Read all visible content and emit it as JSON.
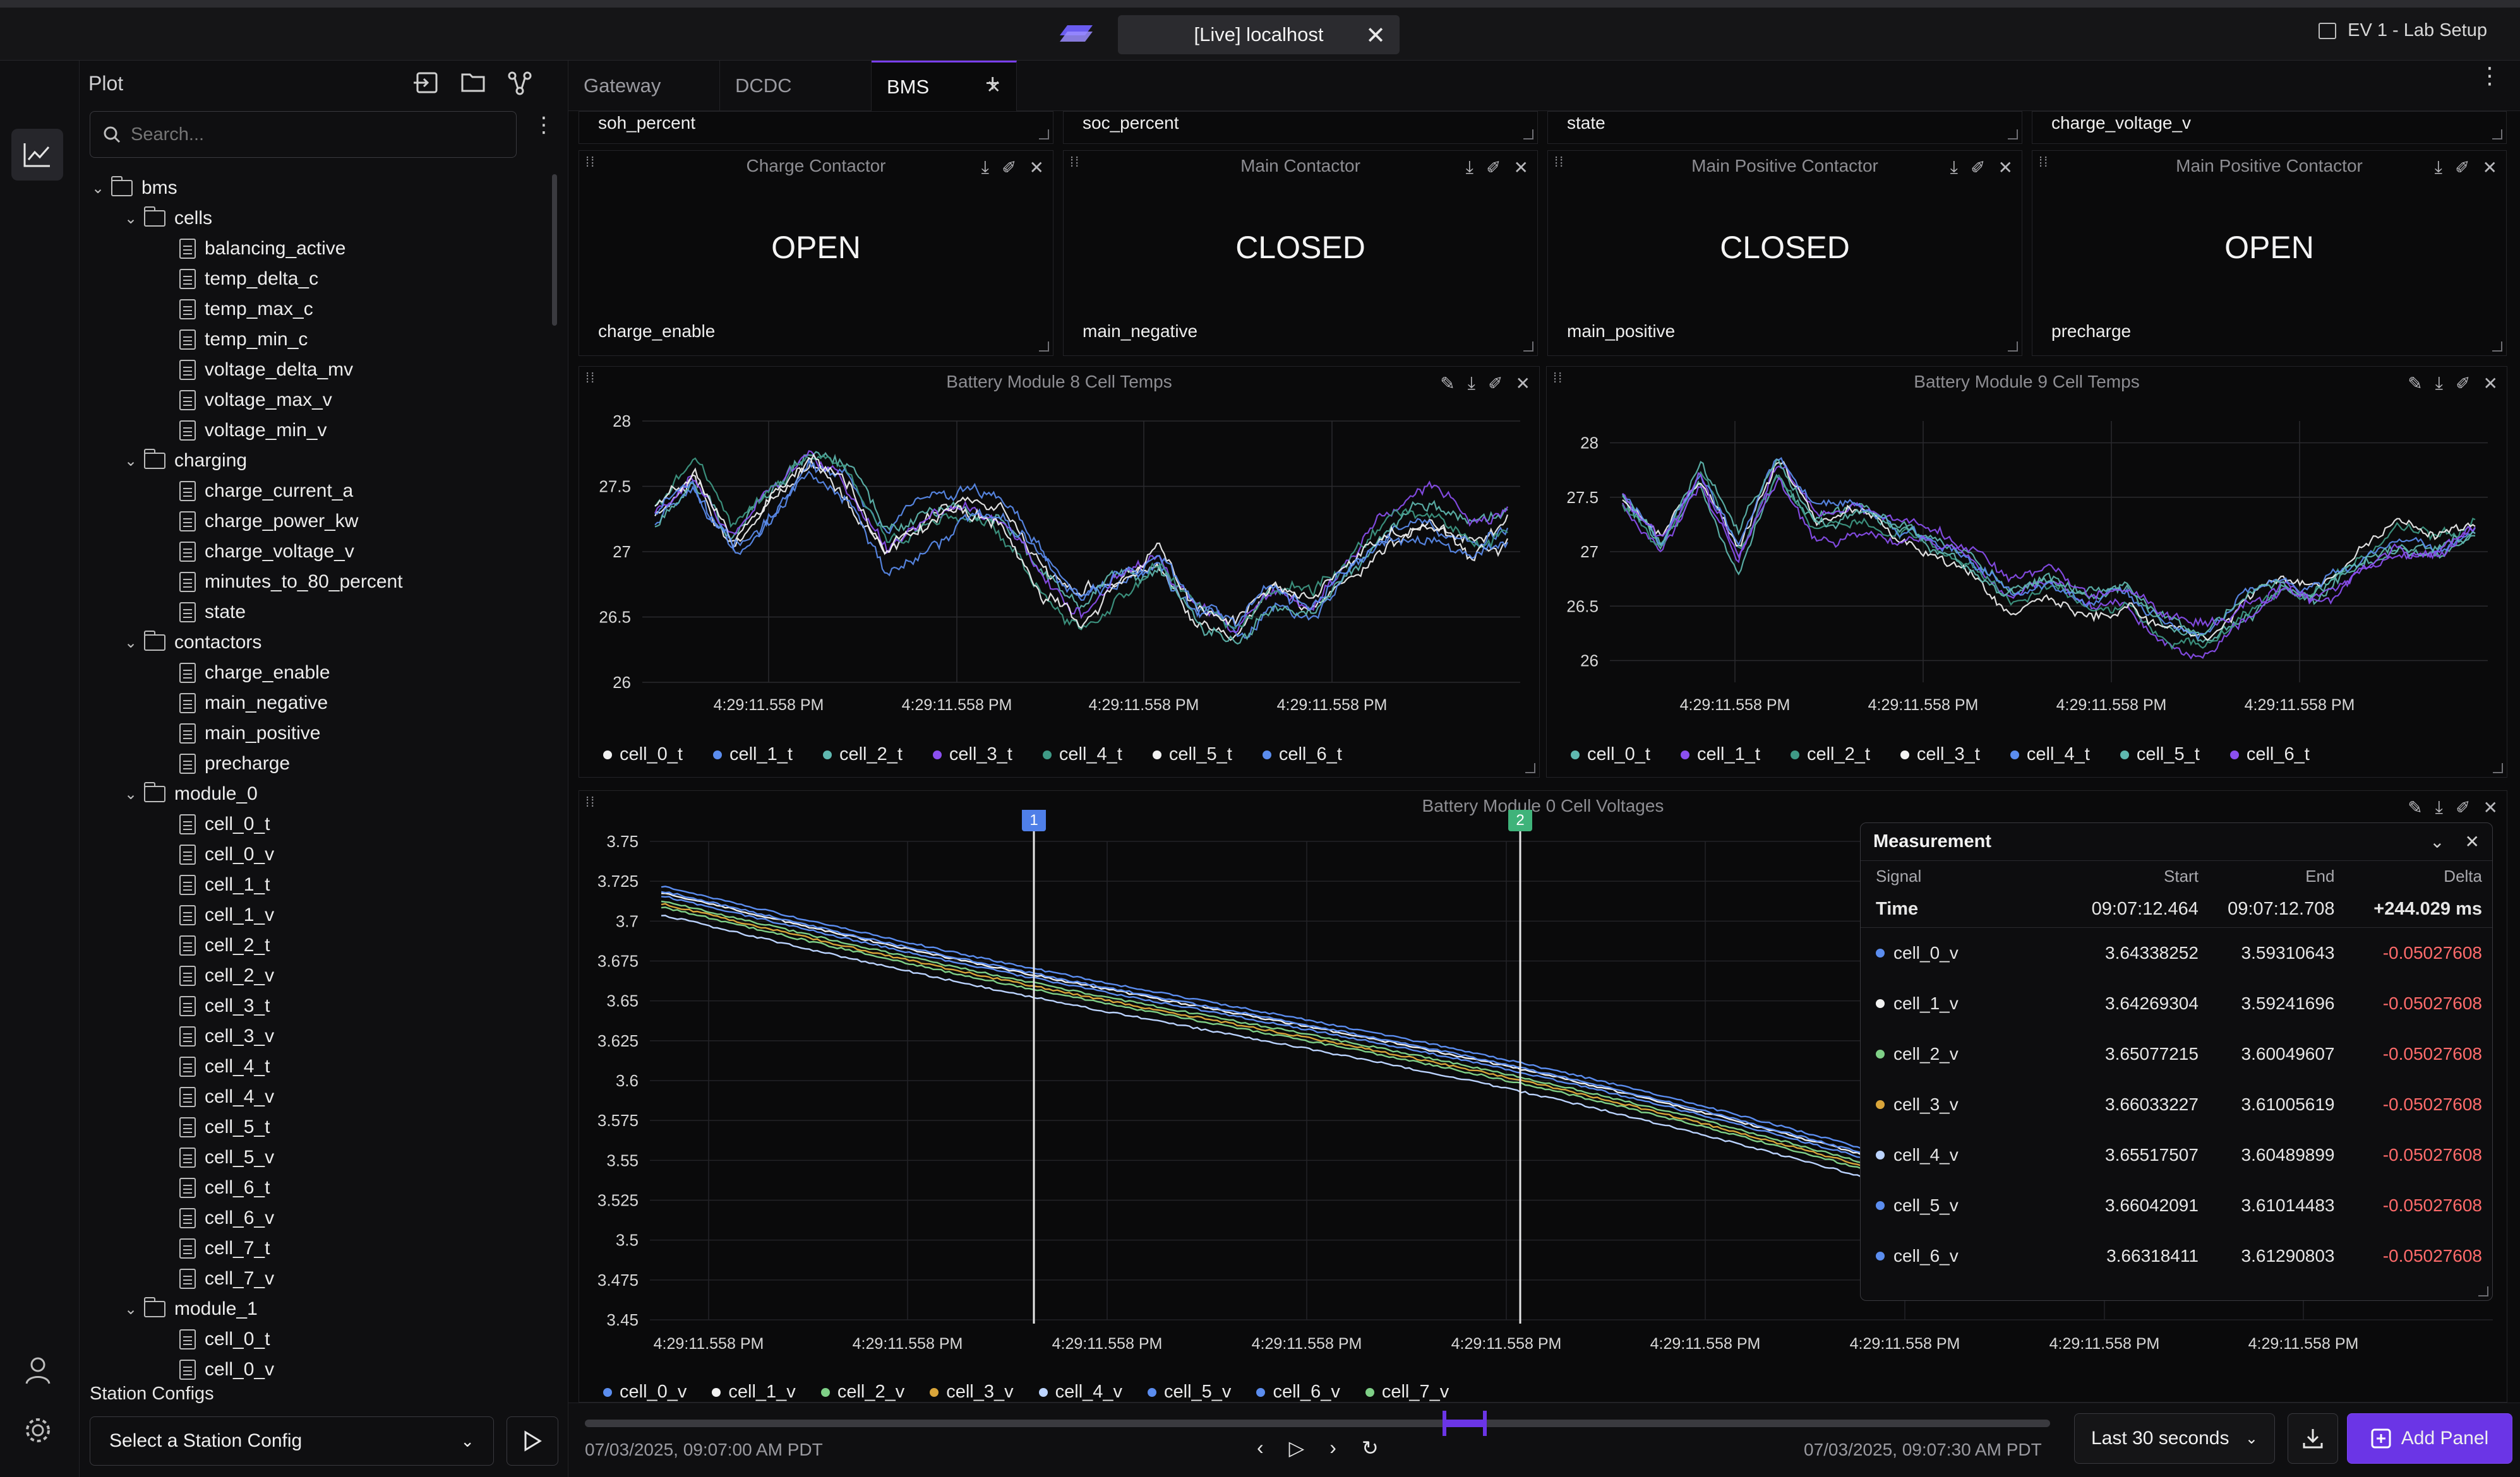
{
  "window": {
    "tab_title": "[Live] localhost",
    "workspace": "EV 1 - Lab Setup"
  },
  "sidebar": {
    "title": "Plot",
    "search_placeholder": "Search...",
    "tree": [
      {
        "label": "bms",
        "type": "dir",
        "level": 0
      },
      {
        "label": "cells",
        "type": "dir",
        "level": 1
      },
      {
        "label": "balancing_active",
        "type": "file",
        "level": 2
      },
      {
        "label": "temp_delta_c",
        "type": "file",
        "level": 2
      },
      {
        "label": "temp_max_c",
        "type": "file",
        "level": 2
      },
      {
        "label": "temp_min_c",
        "type": "file",
        "level": 2
      },
      {
        "label": "voltage_delta_mv",
        "type": "file",
        "level": 2
      },
      {
        "label": "voltage_max_v",
        "type": "file",
        "level": 2
      },
      {
        "label": "voltage_min_v",
        "type": "file",
        "level": 2
      },
      {
        "label": "charging",
        "type": "dir",
        "level": 1
      },
      {
        "label": "charge_current_a",
        "type": "file",
        "level": 2
      },
      {
        "label": "charge_power_kw",
        "type": "file",
        "level": 2
      },
      {
        "label": "charge_voltage_v",
        "type": "file",
        "level": 2
      },
      {
        "label": "minutes_to_80_percent",
        "type": "file",
        "level": 2
      },
      {
        "label": "state",
        "type": "file",
        "level": 2
      },
      {
        "label": "contactors",
        "type": "dir",
        "level": 1
      },
      {
        "label": "charge_enable",
        "type": "file",
        "level": 2
      },
      {
        "label": "main_negative",
        "type": "file",
        "level": 2
      },
      {
        "label": "main_positive",
        "type": "file",
        "level": 2
      },
      {
        "label": "precharge",
        "type": "file",
        "level": 2
      },
      {
        "label": "module_0",
        "type": "dir",
        "level": 1
      },
      {
        "label": "cell_0_t",
        "type": "file",
        "level": 2
      },
      {
        "label": "cell_0_v",
        "type": "file",
        "level": 2
      },
      {
        "label": "cell_1_t",
        "type": "file",
        "level": 2
      },
      {
        "label": "cell_1_v",
        "type": "file",
        "level": 2
      },
      {
        "label": "cell_2_t",
        "type": "file",
        "level": 2
      },
      {
        "label": "cell_2_v",
        "type": "file",
        "level": 2
      },
      {
        "label": "cell_3_t",
        "type": "file",
        "level": 2
      },
      {
        "label": "cell_3_v",
        "type": "file",
        "level": 2
      },
      {
        "label": "cell_4_t",
        "type": "file",
        "level": 2
      },
      {
        "label": "cell_4_v",
        "type": "file",
        "level": 2
      },
      {
        "label": "cell_5_t",
        "type": "file",
        "level": 2
      },
      {
        "label": "cell_5_v",
        "type": "file",
        "level": 2
      },
      {
        "label": "cell_6_t",
        "type": "file",
        "level": 2
      },
      {
        "label": "cell_6_v",
        "type": "file",
        "level": 2
      },
      {
        "label": "cell_7_t",
        "type": "file",
        "level": 2
      },
      {
        "label": "cell_7_v",
        "type": "file",
        "level": 2
      },
      {
        "label": "module_1",
        "type": "dir",
        "level": 1
      },
      {
        "label": "cell_0_t",
        "type": "file",
        "level": 2
      },
      {
        "label": "cell_0_v",
        "type": "file",
        "level": 2
      }
    ],
    "station_configs_label": "Station Configs",
    "station_select": "Select a Station Config"
  },
  "tabs": [
    {
      "label": "Gateway",
      "active": false
    },
    {
      "label": "DCDC",
      "active": false
    },
    {
      "label": "BMS",
      "active": true
    }
  ],
  "top_strip": [
    "soh_percent",
    "soc_percent",
    "state",
    "charge_voltage_v"
  ],
  "contactors": [
    {
      "title": "Charge Contactor",
      "value": "OPEN",
      "signal": "charge_enable"
    },
    {
      "title": "Main Contactor",
      "value": "CLOSED",
      "signal": "main_negative"
    },
    {
      "title": "Main Positive Contactor",
      "value": "CLOSED",
      "signal": "main_positive"
    },
    {
      "title": "Main Positive Contactor",
      "value": "OPEN",
      "signal": "precharge"
    }
  ],
  "colors": {
    "accent": "#7a3ff2",
    "blue": "#5b8def",
    "white": "#f2f2f2",
    "teal": "#5fb8b0",
    "purple": "#8b4ff0",
    "darkteal": "#3f9a86",
    "green": "#7fd087",
    "yellow": "#d9a53a",
    "lightblue": "#bcd4ff",
    "negative": "#ff6b6b",
    "cursor1": "#4f7fe8",
    "cursor2": "#3fb37a"
  },
  "chart_data": [
    {
      "type": "line",
      "title": "Battery Module 8 Cell Temps",
      "ylim": [
        26,
        28
      ],
      "yticks": [
        "28",
        "27.5",
        "27",
        "26.5",
        "26"
      ],
      "xticks": [
        "4:29:11.558 PM",
        "4:29:11.558 PM",
        "4:29:11.558 PM",
        "4:29:11.558 PM"
      ],
      "series": [
        {
          "name": "cell_0_t",
          "color": "#f2f2f2"
        },
        {
          "name": "cell_1_t",
          "color": "#5b8def"
        },
        {
          "name": "cell_2_t",
          "color": "#5fb8b0"
        },
        {
          "name": "cell_3_t",
          "color": "#8b4ff0"
        },
        {
          "name": "cell_4_t",
          "color": "#3f9a86"
        },
        {
          "name": "cell_5_t",
          "color": "#f2f2f2"
        },
        {
          "name": "cell_6_t",
          "color": "#5b8def"
        }
      ],
      "trend": [
        27.4,
        27.7,
        27.2,
        27.5,
        27.8,
        27.6,
        27.1,
        27.3,
        27.5,
        27.4,
        27.0,
        26.7,
        26.9,
        27.0,
        26.6,
        26.5,
        26.8,
        26.7,
        27.0,
        27.3,
        27.4,
        27.2,
        27.3
      ]
    },
    {
      "type": "line",
      "title": "Battery Module 9 Cell Temps",
      "ylim": [
        25.8,
        28.2
      ],
      "yticks": [
        "28",
        "27.5",
        "27",
        "26.5",
        "26"
      ],
      "xticks": [
        "4:29:11.558 PM",
        "4:29:11.558 PM",
        "4:29:11.558 PM",
        "4:29:11.558 PM"
      ],
      "series": [
        {
          "name": "cell_0_t",
          "color": "#5fb8b0"
        },
        {
          "name": "cell_1_t",
          "color": "#8b4ff0"
        },
        {
          "name": "cell_2_t",
          "color": "#3f9a86"
        },
        {
          "name": "cell_3_t",
          "color": "#f2f2f2"
        },
        {
          "name": "cell_4_t",
          "color": "#5b8def"
        },
        {
          "name": "cell_5_t",
          "color": "#5fb8b0"
        },
        {
          "name": "cell_6_t",
          "color": "#8b4ff0"
        }
      ],
      "trend": [
        27.6,
        27.2,
        27.8,
        27.1,
        27.9,
        27.4,
        27.5,
        27.3,
        27.2,
        27.0,
        26.7,
        26.8,
        26.6,
        26.7,
        26.4,
        26.3,
        26.6,
        26.8,
        26.7,
        27.0,
        27.2,
        27.1,
        27.3
      ]
    },
    {
      "type": "line",
      "title": "Battery Module 0 Cell Voltages",
      "ylim": [
        3.45,
        3.75
      ],
      "yticks": [
        "3.75",
        "3.725",
        "3.7",
        "3.675",
        "3.65",
        "3.625",
        "3.6",
        "3.575",
        "3.55",
        "3.525",
        "3.5",
        "3.475",
        "3.45"
      ],
      "xticks": [
        "4:29:11.558 PM",
        "4:29:11.558 PM",
        "4:29:11.558 PM",
        "4:29:11.558 PM",
        "4:29:11.558 PM",
        "4:29:11.558 PM",
        "4:29:11.558 PM",
        "4:29:11.558 PM",
        "4:29:11.558 PM"
      ],
      "series": [
        {
          "name": "cell_0_v",
          "color": "#5b8def",
          "start": 3.722,
          "end": 3.558
        },
        {
          "name": "cell_1_v",
          "color": "#f2f2f2",
          "start": 3.718,
          "end": 3.554
        },
        {
          "name": "cell_2_v",
          "color": "#7fd087",
          "start": 3.713,
          "end": 3.549
        },
        {
          "name": "cell_3_v",
          "color": "#d9a53a",
          "start": 3.711,
          "end": 3.547
        },
        {
          "name": "cell_4_v",
          "color": "#bcd4ff",
          "start": 3.704,
          "end": 3.54
        },
        {
          "name": "cell_5_v",
          "color": "#5b8def",
          "start": 3.716,
          "end": 3.552
        },
        {
          "name": "cell_6_v",
          "color": "#5b8def",
          "start": 3.719,
          "end": 3.555
        },
        {
          "name": "cell_7_v",
          "color": "#7fd087",
          "start": 3.709,
          "end": 3.545
        }
      ],
      "cursors": [
        {
          "label": "1"
        },
        {
          "label": "2"
        }
      ]
    }
  ],
  "measurement": {
    "title": "Measurement",
    "headers": [
      "Signal",
      "Start",
      "End",
      "Delta"
    ],
    "time": {
      "label": "Time",
      "start": "09:07:12.464",
      "end": "09:07:12.708",
      "delta": "+244.029 ms"
    },
    "rows": [
      {
        "signal": "cell_0_v",
        "color": "#5b8def",
        "start": "3.64338252",
        "end": "3.59310643",
        "delta": "-0.05027608"
      },
      {
        "signal": "cell_1_v",
        "color": "#f2f2f2",
        "start": "3.64269304",
        "end": "3.59241696",
        "delta": "-0.05027608"
      },
      {
        "signal": "cell_2_v",
        "color": "#7fd087",
        "start": "3.65077215",
        "end": "3.60049607",
        "delta": "-0.05027608"
      },
      {
        "signal": "cell_3_v",
        "color": "#d9a53a",
        "start": "3.66033227",
        "end": "3.61005619",
        "delta": "-0.05027608"
      },
      {
        "signal": "cell_4_v",
        "color": "#bcd4ff",
        "start": "3.65517507",
        "end": "3.60489899",
        "delta": "-0.05027608"
      },
      {
        "signal": "cell_5_v",
        "color": "#5b8def",
        "start": "3.66042091",
        "end": "3.61014483",
        "delta": "-0.05027608"
      },
      {
        "signal": "cell_6_v",
        "color": "#5b8def",
        "start": "3.66318411",
        "end": "3.61290803",
        "delta": "-0.05027608"
      }
    ]
  },
  "timeline": {
    "start": "07/03/2025, 09:07:00 AM PDT",
    "end": "07/03/2025, 09:07:30 AM PDT",
    "range": "Last 30 seconds",
    "add_panel": "Add Panel",
    "window_start": 0.4,
    "window_end": 0.43
  }
}
